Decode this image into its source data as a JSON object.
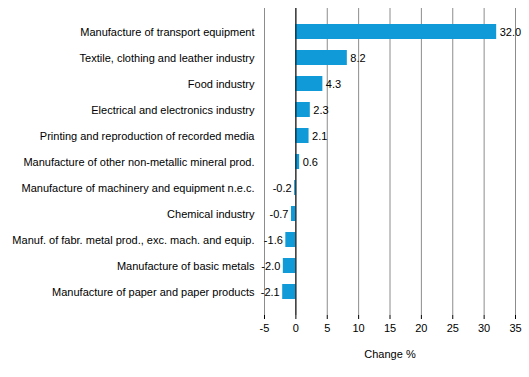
{
  "chart_data": {
    "type": "bar",
    "orientation": "horizontal",
    "categories": [
      "Manufacture of transport equipment",
      "Textile, clothing and leather industry",
      "Food industry",
      "Electrical and electronics industry",
      "Printing and reproduction of recorded media",
      "Manufacture of other non-metallic mineral prod.",
      "Manufacture of machinery and equipment n.e.c.",
      "Chemical industry",
      "Manuf. of fabr. metal prod., exc. mach. and equip.",
      "Manufacture of basic metals",
      "Manufacture of paper and paper products"
    ],
    "values": [
      32.0,
      8.2,
      4.3,
      2.3,
      2.1,
      0.6,
      -0.2,
      -0.7,
      -1.6,
      -2.0,
      -2.1
    ],
    "value_labels": [
      "32.0",
      "8.2",
      "4.3",
      "2.3",
      "2.1",
      "0.6",
      "-0.2",
      "-0.7",
      "-1.6",
      "-2.0",
      "-2.1"
    ],
    "data_labels": true,
    "color": "#109ad8",
    "x_label": "Change %",
    "xlim": [
      -5,
      35
    ],
    "xticks": [
      -5,
      0,
      5,
      10,
      15,
      20,
      25,
      30,
      35
    ],
    "grid": true
  }
}
